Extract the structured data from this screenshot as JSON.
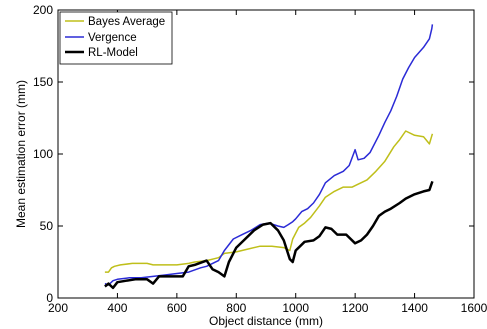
{
  "chart_data": {
    "type": "line",
    "title": "",
    "xlabel": "Object distance (mm)",
    "ylabel": "Mean estimation error (mm)",
    "xlim": [
      200,
      1600
    ],
    "ylim": [
      0,
      200
    ],
    "xticks": [
      200,
      400,
      600,
      800,
      1000,
      1200,
      1400,
      1600
    ],
    "yticks": [
      0,
      50,
      100,
      150,
      200
    ],
    "grid": false,
    "legend_position": "top-left",
    "colors": {
      "bayes": "#bfbf1a",
      "vergence": "#2b2bd6",
      "rl": "#000000",
      "axes": "#000000",
      "background": "#ffffff"
    },
    "series": [
      {
        "name": "Bayes Average",
        "key": "bayes",
        "points": [
          [
            358,
            18
          ],
          [
            370,
            18
          ],
          [
            380,
            21
          ],
          [
            390,
            22
          ],
          [
            410,
            23
          ],
          [
            450,
            24
          ],
          [
            500,
            24
          ],
          [
            520,
            23
          ],
          [
            560,
            23
          ],
          [
            600,
            23
          ],
          [
            640,
            24
          ],
          [
            660,
            25
          ],
          [
            700,
            26
          ],
          [
            740,
            28
          ],
          [
            760,
            31
          ],
          [
            800,
            32
          ],
          [
            840,
            34
          ],
          [
            880,
            36
          ],
          [
            920,
            36
          ],
          [
            960,
            35
          ],
          [
            980,
            33
          ],
          [
            990,
            41
          ],
          [
            1010,
            49
          ],
          [
            1030,
            52
          ],
          [
            1050,
            56
          ],
          [
            1080,
            64
          ],
          [
            1100,
            70
          ],
          [
            1130,
            74
          ],
          [
            1160,
            77
          ],
          [
            1190,
            77
          ],
          [
            1210,
            79
          ],
          [
            1240,
            82
          ],
          [
            1270,
            88
          ],
          [
            1300,
            95
          ],
          [
            1330,
            105
          ],
          [
            1350,
            110
          ],
          [
            1370,
            116
          ],
          [
            1400,
            113
          ],
          [
            1430,
            112
          ],
          [
            1450,
            107
          ],
          [
            1460,
            114
          ]
        ]
      },
      {
        "name": "Vergence",
        "key": "vergence",
        "points": [
          [
            358,
            10
          ],
          [
            370,
            9
          ],
          [
            385,
            12
          ],
          [
            400,
            13
          ],
          [
            440,
            14
          ],
          [
            480,
            14
          ],
          [
            520,
            15
          ],
          [
            560,
            16
          ],
          [
            600,
            17
          ],
          [
            640,
            18
          ],
          [
            680,
            21
          ],
          [
            700,
            22
          ],
          [
            740,
            26
          ],
          [
            760,
            33
          ],
          [
            790,
            41
          ],
          [
            820,
            44
          ],
          [
            850,
            47
          ],
          [
            880,
            51
          ],
          [
            910,
            52
          ],
          [
            940,
            50
          ],
          [
            960,
            49
          ],
          [
            975,
            51
          ],
          [
            990,
            53
          ],
          [
            1000,
            55
          ],
          [
            1020,
            60
          ],
          [
            1040,
            62
          ],
          [
            1060,
            66
          ],
          [
            1080,
            72
          ],
          [
            1100,
            80
          ],
          [
            1130,
            85
          ],
          [
            1160,
            88
          ],
          [
            1180,
            92
          ],
          [
            1200,
            103
          ],
          [
            1210,
            96
          ],
          [
            1230,
            97
          ],
          [
            1250,
            101
          ],
          [
            1280,
            113
          ],
          [
            1300,
            122
          ],
          [
            1320,
            130
          ],
          [
            1340,
            140
          ],
          [
            1360,
            152
          ],
          [
            1380,
            160
          ],
          [
            1400,
            167
          ],
          [
            1430,
            174
          ],
          [
            1450,
            180
          ],
          [
            1458,
            187
          ],
          [
            1460,
            190
          ]
        ]
      },
      {
        "name": "RL-Model",
        "key": "rl",
        "points": [
          [
            358,
            8
          ],
          [
            370,
            10
          ],
          [
            385,
            7
          ],
          [
            400,
            11
          ],
          [
            430,
            12
          ],
          [
            460,
            13
          ],
          [
            500,
            13
          ],
          [
            520,
            10
          ],
          [
            540,
            15
          ],
          [
            580,
            15
          ],
          [
            620,
            15
          ],
          [
            640,
            22
          ],
          [
            660,
            23
          ],
          [
            700,
            26
          ],
          [
            720,
            20
          ],
          [
            740,
            18
          ],
          [
            760,
            15
          ],
          [
            775,
            25
          ],
          [
            800,
            35
          ],
          [
            830,
            41
          ],
          [
            860,
            47
          ],
          [
            890,
            51
          ],
          [
            915,
            52
          ],
          [
            940,
            47
          ],
          [
            960,
            40
          ],
          [
            980,
            27
          ],
          [
            990,
            25
          ],
          [
            1000,
            33
          ],
          [
            1030,
            39
          ],
          [
            1060,
            40
          ],
          [
            1080,
            43
          ],
          [
            1100,
            49
          ],
          [
            1120,
            48
          ],
          [
            1140,
            44
          ],
          [
            1170,
            44
          ],
          [
            1200,
            38
          ],
          [
            1220,
            40
          ],
          [
            1240,
            44
          ],
          [
            1260,
            50
          ],
          [
            1280,
            57
          ],
          [
            1300,
            60
          ],
          [
            1320,
            62
          ],
          [
            1350,
            66
          ],
          [
            1370,
            69
          ],
          [
            1400,
            72
          ],
          [
            1430,
            74
          ],
          [
            1450,
            75
          ],
          [
            1460,
            81
          ]
        ]
      }
    ]
  }
}
